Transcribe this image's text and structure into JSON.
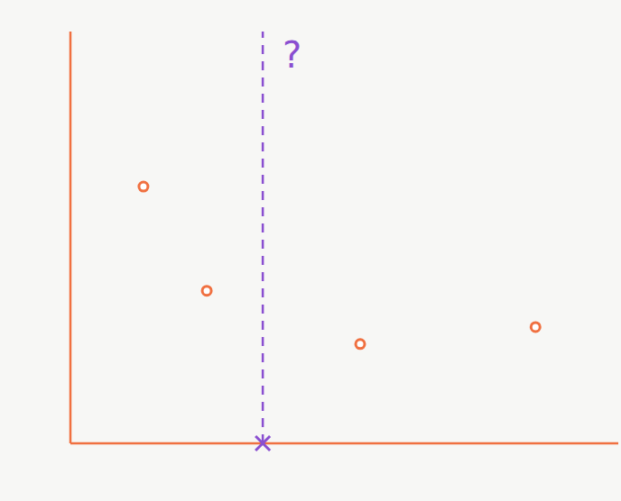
{
  "chart_data": {
    "type": "scatter",
    "x": [
      3.0,
      5.6,
      11.9,
      19.1
    ],
    "values": [
      10.6,
      6.3,
      4.1,
      4.8
    ],
    "color": "#f07040",
    "marker": "o",
    "xlim": [
      0,
      22.5
    ],
    "ylim": [
      0,
      17
    ],
    "tick_labels": false,
    "grid": false,
    "annotations": [
      {
        "type": "vline",
        "x": 7.9,
        "text": "?",
        "color": "#8a4fd0",
        "line_style": "dashed",
        "marker": "x"
      }
    ]
  }
}
